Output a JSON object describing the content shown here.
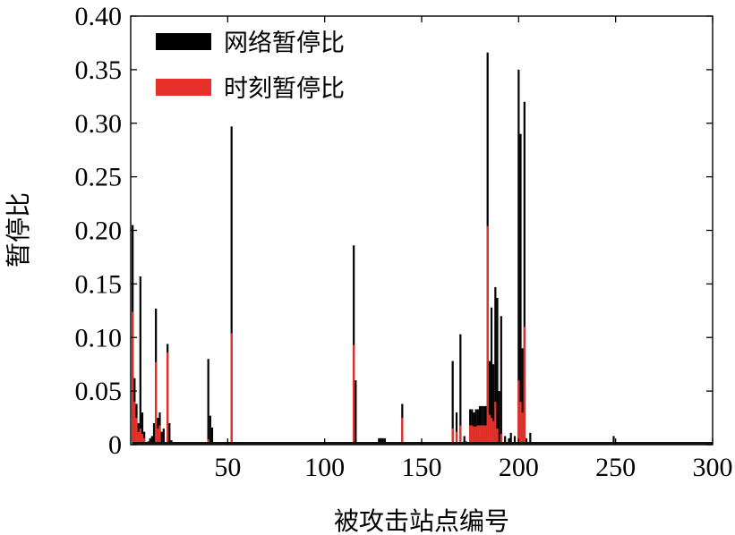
{
  "chart_data": {
    "type": "bar",
    "title": "",
    "xlabel": "被攻击站点编号",
    "ylabel": "暂停比",
    "xlim": [
      0,
      300
    ],
    "ylim": [
      0,
      0.4
    ],
    "x_ticks": [
      50,
      100,
      150,
      200,
      250,
      300
    ],
    "y_ticks": [
      "0",
      "0.05",
      "0.10",
      "0.15",
      "0.20",
      "0.25",
      "0.30",
      "0.35",
      "0.40"
    ],
    "grid": false,
    "legend_position": "top-left",
    "series": [
      {
        "name": "网络暂停比",
        "color": "#000000",
        "points": [
          [
            1,
            0.205
          ],
          [
            2,
            0.062
          ],
          [
            3,
            0.038
          ],
          [
            4,
            0.02
          ],
          [
            5,
            0.157
          ],
          [
            6,
            0.03
          ],
          [
            7,
            0.012
          ],
          [
            9,
            0.003
          ],
          [
            10,
            0.006
          ],
          [
            11,
            0.008
          ],
          [
            12,
            0.02
          ],
          [
            13,
            0.127
          ],
          [
            14,
            0.025
          ],
          [
            15,
            0.03
          ],
          [
            16,
            0.012
          ],
          [
            17,
            0.015
          ],
          [
            19,
            0.094
          ],
          [
            20,
            0.02
          ],
          [
            21,
            0.004
          ],
          [
            40,
            0.08
          ],
          [
            41,
            0.027
          ],
          [
            42,
            0.016
          ],
          [
            52,
            0.297
          ],
          [
            115,
            0.186
          ],
          [
            116,
            0.06
          ],
          [
            128,
            0.006
          ],
          [
            129,
            0.006
          ],
          [
            130,
            0.006
          ],
          [
            131,
            0.006
          ],
          [
            140,
            0.038
          ],
          [
            166,
            0.078
          ],
          [
            168,
            0.03
          ],
          [
            170,
            0.103
          ],
          [
            172,
            0.008
          ],
          [
            173,
            0.003
          ],
          [
            175,
            0.033
          ],
          [
            176,
            0.033
          ],
          [
            177,
            0.03
          ],
          [
            178,
            0.033
          ],
          [
            179,
            0.033
          ],
          [
            180,
            0.036
          ],
          [
            181,
            0.036
          ],
          [
            182,
            0.036
          ],
          [
            183,
            0.036
          ],
          [
            184,
            0.366
          ],
          [
            185,
            0.078
          ],
          [
            186,
            0.128
          ],
          [
            187,
            0.075
          ],
          [
            188,
            0.147
          ],
          [
            189,
            0.137
          ],
          [
            190,
            0.05
          ],
          [
            191,
            0.12
          ],
          [
            193,
            0.008
          ],
          [
            195,
            0.006
          ],
          [
            196,
            0.011
          ],
          [
            198,
            0.008
          ],
          [
            200,
            0.35
          ],
          [
            201,
            0.29
          ],
          [
            202,
            0.09
          ],
          [
            203,
            0.32
          ],
          [
            204,
            0.006
          ],
          [
            206,
            0.011
          ],
          [
            249,
            0.008
          ]
        ]
      },
      {
        "name": "时刻暂停比",
        "color": "#e8302a",
        "points": [
          [
            1,
            0.124
          ],
          [
            2,
            0.04
          ],
          [
            3,
            0.025
          ],
          [
            4,
            0.012
          ],
          [
            5,
            0.015
          ],
          [
            6,
            0.01
          ],
          [
            7,
            0.006
          ],
          [
            13,
            0.077
          ],
          [
            14,
            0.015
          ],
          [
            15,
            0.018
          ],
          [
            19,
            0.086
          ],
          [
            40,
            0.005
          ],
          [
            52,
            0.104
          ],
          [
            115,
            0.093
          ],
          [
            140,
            0.025
          ],
          [
            166,
            0.015
          ],
          [
            168,
            0.012
          ],
          [
            170,
            0.018
          ],
          [
            175,
            0.018
          ],
          [
            176,
            0.018
          ],
          [
            177,
            0.017
          ],
          [
            178,
            0.017
          ],
          [
            179,
            0.018
          ],
          [
            180,
            0.018
          ],
          [
            181,
            0.018
          ],
          [
            182,
            0.018
          ],
          [
            183,
            0.018
          ],
          [
            184,
            0.204
          ],
          [
            185,
            0.028
          ],
          [
            186,
            0.025
          ],
          [
            187,
            0.022
          ],
          [
            188,
            0.04
          ],
          [
            189,
            0.015
          ],
          [
            191,
            0.01
          ],
          [
            200,
            0.06
          ],
          [
            201,
            0.04
          ],
          [
            202,
            0.03
          ],
          [
            203,
            0.11
          ]
        ]
      }
    ]
  }
}
